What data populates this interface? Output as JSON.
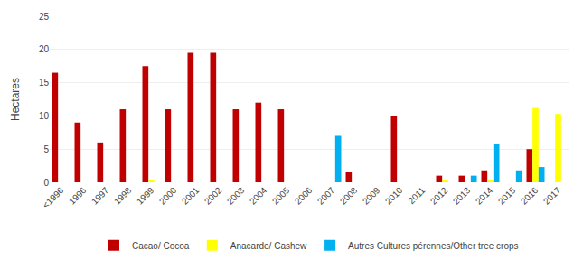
{
  "chart_data": {
    "type": "bar",
    "categories": [
      "<1996",
      "1996",
      "1997",
      "1998",
      "1999",
      "2000",
      "2001",
      "2002",
      "2003",
      "2004",
      "2005",
      "2006",
      "2007",
      "2008",
      "2009",
      "2010",
      "2011",
      "2012",
      "2013",
      "2014",
      "2015",
      "2016",
      "2017"
    ],
    "series": [
      {
        "name": "Cacao/ Cocoa",
        "color": "#C00000",
        "values": [
          16.5,
          9.0,
          6.0,
          11.0,
          17.5,
          11.0,
          19.5,
          19.5,
          11.0,
          12.0,
          11.0,
          0,
          0,
          1.5,
          0,
          10.0,
          0,
          1.0,
          1.0,
          1.8,
          0,
          5.0,
          0
        ]
      },
      {
        "name": "Anacarde/ Cashew",
        "color": "#FFFF00",
        "values": [
          0,
          0,
          0,
          0,
          0.4,
          0,
          0,
          0,
          0,
          0,
          0,
          0,
          0,
          0,
          0,
          0,
          0,
          0.4,
          0,
          0.4,
          0,
          11.2,
          10.3
        ]
      },
      {
        "name": "Autres Cultures pérennes/Other tree crops",
        "color": "#00B0F0",
        "values": [
          0,
          0,
          0,
          0,
          0,
          0,
          0,
          0,
          0,
          0,
          0,
          0,
          7.0,
          0,
          0,
          0,
          0,
          0,
          1.0,
          5.8,
          1.8,
          2.3,
          0
        ]
      }
    ],
    "ylabel": "Hectares",
    "ylim": [
      0,
      25
    ],
    "yticks": [
      0,
      5,
      10,
      15,
      20,
      25
    ],
    "grid": true,
    "legend": "bottom"
  }
}
